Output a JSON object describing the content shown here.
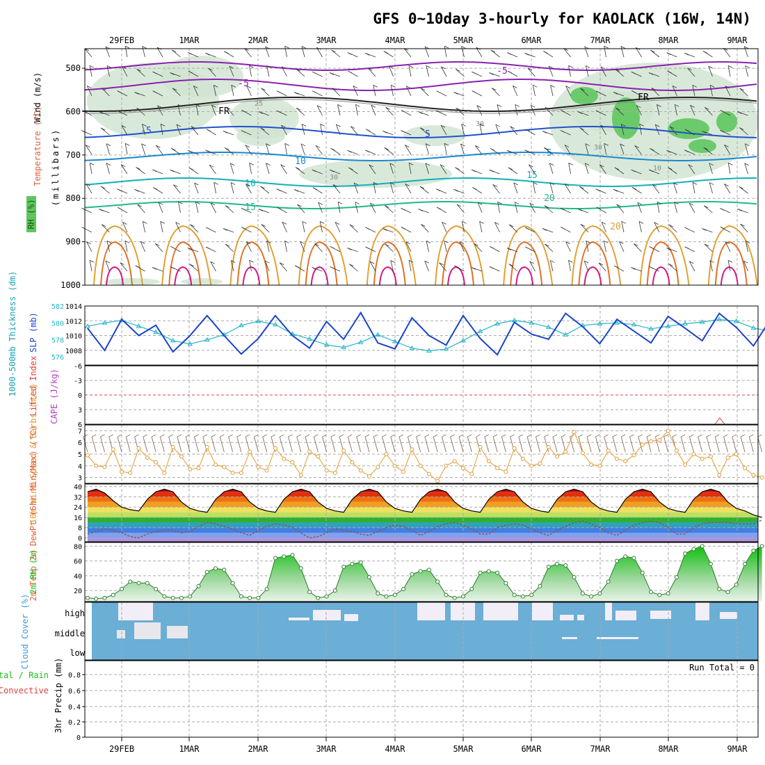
{
  "title": "GFS 0~10day 3-hourly for KAOLACK (16W, 14N)",
  "dates": [
    "29FEB",
    "1MAR",
    "2MAR",
    "3MAR",
    "4MAR",
    "5MAR",
    "6MAR",
    "7MAR",
    "8MAR",
    "9MAR"
  ],
  "run_total_label": "Run Total = 0",
  "colors": {
    "grid": "#aaaaaa",
    "rh_fill": "#cfe3cf",
    "rh_fill_dark": "#5ec65e",
    "thickness": "#22b4c8",
    "slp": "#1a44c8",
    "wind10": "#e09a30",
    "barb": "#8a6a5a",
    "cloud": "#6baed6",
    "cloud_cover": "#f2eef8",
    "rh2m": "#1fbf1f",
    "dewpt": "#8a5a4a",
    "zero_line": "#e04040"
  },
  "panels": {
    "upper_air": {
      "ylabels": [
        {
          "text": "Wind (m/s)",
          "color": "#000000"
        },
        {
          "text": "Temperature (°C)",
          "color": "#e06040"
        },
        {
          "text": "RH (%)",
          "color": "#2a8a2a"
        }
      ],
      "axis_label": "(millibars)",
      "pressure_ticks": [
        "500",
        "600",
        "700",
        "800",
        "900",
        "1000"
      ],
      "contour_labels": [
        "-5",
        "-5",
        "FR",
        "FR",
        "-5",
        "5",
        "5",
        "10",
        "10",
        "15",
        "15",
        "20",
        "20",
        "25",
        "30",
        "30",
        "30",
        "10",
        "30"
      ]
    },
    "thickness_slp": {
      "ylabel_left": "1000-500mb Thickness (dm)",
      "ylabel_right": "SLP (mb)",
      "left_ticks": [
        "582",
        "580",
        "578",
        "576"
      ],
      "right_ticks": [
        "1014",
        "1012",
        "1010",
        "1008"
      ]
    },
    "cape_li": {
      "ylabel_red": "Lifted Index",
      "ylabel_purple": "CAPE (J/kg)",
      "ticks": [
        "-6",
        "-3",
        "0",
        "3",
        "6"
      ]
    },
    "wind10m": {
      "ylabel": "10m Wind Speed & Barbs (m/s)",
      "ticks": [
        "7",
        "6",
        "5",
        "4",
        "3"
      ]
    },
    "temp2m": {
      "ylabel": "2m Temp 2m DewPt (6hr Min/Max) (°C)",
      "ticks": [
        "40",
        "32",
        "24",
        "16",
        "8",
        "0"
      ]
    },
    "rh2m": {
      "ylabel": "2m RH (%)",
      "ticks": [
        "80",
        "60",
        "40",
        "20"
      ]
    },
    "cloud": {
      "ylabel": "Cloud Cover (%)",
      "levels": [
        "high",
        "middle",
        "low"
      ]
    },
    "precip": {
      "ylabel_green": "Total / Rain",
      "ylabel_red": "Convective",
      "ylabel_black": "3hr Precip (mm)",
      "ticks": [
        "0.8",
        "0.6",
        "0.4",
        "0.2",
        "0"
      ]
    }
  },
  "chart_data": [
    {
      "type": "line",
      "name": "1000-500mb Thickness",
      "ylabel": "1000-500mb Thickness (dm)",
      "ylim": [
        575,
        582
      ],
      "x_start": "29FEB",
      "step_hours": 6,
      "series": [
        {
          "name": "Thickness",
          "values": [
            579.6,
            580.0,
            580.3,
            579.6,
            578.9,
            577.9,
            577.5,
            578.0,
            578.6,
            579.7,
            580.2,
            579.8,
            578.7,
            578.1,
            577.4,
            577.1,
            577.7,
            578.6,
            577.8,
            577.0,
            576.7,
            576.9,
            577.9,
            579.0,
            579.9,
            580.3,
            580.0,
            579.5,
            578.6,
            579.7,
            579.9,
            580.0,
            579.8,
            579.3,
            579.6,
            579.9,
            580.1,
            580.4,
            580.2,
            579.4,
            579.0,
            578.5,
            578.9,
            579.4,
            580.1,
            580.5,
            581.1,
            580.5,
            580.0,
            579.6
          ]
        }
      ]
    },
    {
      "type": "line",
      "name": "SLP",
      "ylabel": "SLP (mb)",
      "ylim": [
        1006,
        1014
      ],
      "x_start": "29FEB",
      "step_hours": 6,
      "series": [
        {
          "name": "SLP",
          "values": [
            1011.0,
            1008.0,
            1012.2,
            1010.0,
            1011.4,
            1007.8,
            1010.0,
            1012.7,
            1010.0,
            1007.5,
            1009.6,
            1012.7,
            1010.0,
            1008.3,
            1011.9,
            1009.5,
            1013.1,
            1009.0,
            1008.2,
            1012.4,
            1010.0,
            1008.7,
            1012.7,
            1009.6,
            1007.4,
            1011.8,
            1010.2,
            1009.5,
            1013.0,
            1011.2,
            1008.9,
            1012.2,
            1010.6,
            1009.0,
            1012.6,
            1011.0,
            1009.3,
            1013.0,
            1011.1,
            1008.6,
            1012.2,
            1010.5,
            1008.3,
            1011.6,
            1010.1,
            1008.0,
            1011.6,
            1010.8,
            1008.2,
            1011.7
          ]
        }
      ]
    },
    {
      "type": "line",
      "name": "10m Wind Speed",
      "ylabel": "10m Wind Speed & Barbs (m/s)",
      "ylim": [
        2.5,
        7.5
      ],
      "x_start": "29FEB",
      "step_hours": 3,
      "series": [
        {
          "name": "10m Wind Speed",
          "values": [
            4.9,
            4.0,
            3.9,
            5.4,
            3.5,
            3.4,
            5.5,
            4.7,
            4.3,
            3.4,
            5.6,
            4.8,
            3.7,
            3.8,
            5.6,
            4.1,
            3.9,
            3.4,
            3.4,
            5.2,
            3.9,
            3.6,
            5.5,
            4.6,
            4.3,
            3.2,
            5.2,
            4.8,
            3.6,
            3.4,
            5.3,
            4.3,
            3.6,
            3.1,
            3.9,
            5.0,
            4.0,
            3.5,
            5.4,
            4.0,
            3.3,
            2.7,
            4.0,
            4.4,
            3.8,
            3.3,
            5.6,
            4.4,
            3.8,
            3.5,
            5.5,
            4.6,
            4.0,
            4.2,
            5.6,
            4.8,
            5.2,
            6.9,
            5.1,
            4.1,
            4.0,
            5.3,
            4.6,
            4.4,
            4.9,
            5.8,
            6.1,
            6.2,
            7.0,
            5.3,
            4.1,
            5.0,
            4.6,
            4.8,
            3.2,
            4.7,
            5.0,
            3.8,
            3.2,
            3.0
          ]
        }
      ]
    },
    {
      "type": "area",
      "name": "2m Temperature and Dewpoint",
      "ylabel": "2m Temp 2m DewPt (6hr Min/Max) (°C)",
      "ylim": [
        -3,
        42
      ],
      "x_start": "29FEB",
      "step_hours": 3,
      "series": [
        {
          "name": "2m Temp",
          "values": [
            36,
            38,
            35,
            29,
            24,
            22,
            21,
            30,
            36,
            38,
            36,
            28,
            23,
            21,
            20,
            30,
            36,
            38,
            36,
            28,
            23,
            21,
            20,
            30,
            36,
            38,
            36,
            28,
            23,
            21,
            20,
            30,
            36,
            38,
            36,
            28,
            23,
            21,
            20,
            30,
            36,
            38,
            36,
            28,
            23,
            21,
            20,
            30,
            36,
            38,
            36,
            28,
            23,
            21,
            20,
            30,
            36,
            38,
            36,
            28,
            23,
            21,
            20,
            30,
            36,
            38,
            36,
            28,
            23,
            21,
            20,
            30,
            36,
            38,
            36,
            28,
            23,
            21,
            18,
            16
          ]
        },
        {
          "name": "2m DewPt",
          "values": [
            3,
            5,
            7,
            6,
            4,
            1,
            0,
            3,
            5,
            6,
            6,
            4,
            5,
            9,
            12,
            11,
            9,
            7,
            4,
            2,
            6,
            9,
            11,
            10,
            8,
            4,
            0,
            1,
            4,
            7,
            6,
            5,
            3,
            2,
            5,
            8,
            10,
            9,
            6,
            2,
            5,
            9,
            11,
            12,
            10,
            7,
            3,
            3,
            8,
            10,
            11,
            10,
            7,
            4,
            2,
            6,
            9,
            12,
            13,
            11,
            8,
            4,
            2,
            6,
            10,
            12,
            13,
            12,
            8,
            3,
            3,
            8,
            11,
            12,
            12,
            12,
            11,
            11,
            11,
            14
          ]
        }
      ]
    },
    {
      "type": "line",
      "name": "2m RH",
      "ylabel": "2m RH (%)",
      "ylim": [
        5,
        85
      ],
      "x_start": "29FEB",
      "step_hours": 3,
      "series": [
        {
          "name": "2m RH",
          "values": [
            10,
            9,
            10,
            14,
            22,
            32,
            30,
            30,
            22,
            12,
            10,
            10,
            12,
            26,
            45,
            50,
            48,
            30,
            12,
            10,
            10,
            22,
            64,
            66,
            68,
            50,
            18,
            10,
            12,
            20,
            52,
            56,
            58,
            38,
            16,
            12,
            14,
            22,
            42,
            46,
            48,
            32,
            14,
            10,
            12,
            22,
            44,
            46,
            44,
            30,
            14,
            12,
            14,
            26,
            52,
            56,
            54,
            38,
            16,
            12,
            16,
            32,
            60,
            66,
            64,
            44,
            18,
            14,
            16,
            38,
            70,
            76,
            80,
            56,
            22,
            18,
            28,
            56,
            74,
            80
          ]
        }
      ]
    },
    {
      "type": "line",
      "name": "3hr Precip",
      "ylabel": "3hr Precip (mm)",
      "ylim": [
        0,
        1
      ],
      "x_start": "29FEB",
      "step_hours": 3,
      "series": [
        {
          "name": "3hr Precip",
          "values": [
            0,
            0,
            0,
            0,
            0,
            0,
            0,
            0,
            0,
            0,
            0,
            0,
            0,
            0,
            0,
            0,
            0,
            0,
            0,
            0,
            0,
            0,
            0,
            0,
            0,
            0,
            0,
            0,
            0,
            0,
            0,
            0,
            0,
            0,
            0,
            0,
            0,
            0,
            0,
            0,
            0,
            0,
            0,
            0,
            0,
            0,
            0,
            0,
            0,
            0,
            0,
            0,
            0,
            0,
            0,
            0,
            0,
            0,
            0,
            0,
            0,
            0,
            0,
            0,
            0,
            0,
            0,
            0,
            0,
            0,
            0,
            0,
            0,
            0,
            0,
            0,
            0,
            0,
            0,
            0
          ]
        }
      ]
    }
  ]
}
